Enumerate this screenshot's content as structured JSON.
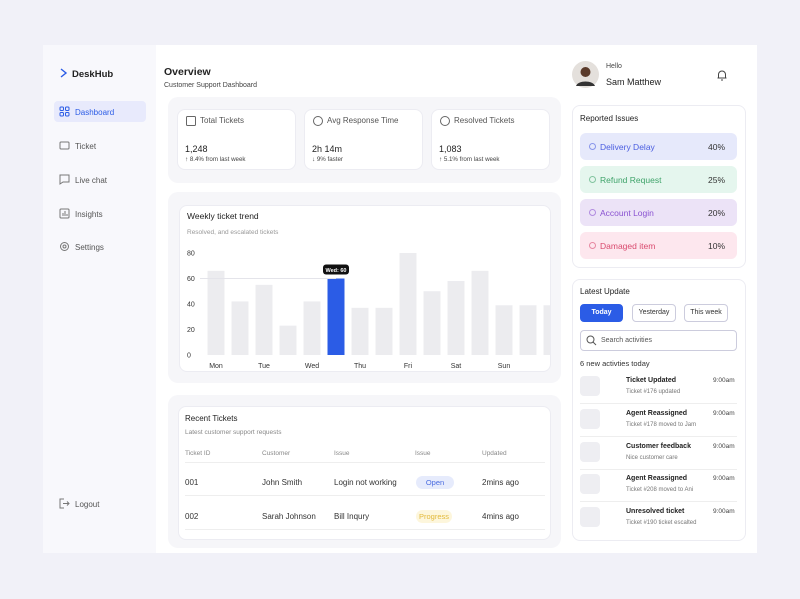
{
  "sidebar": {
    "brand": "DeskHub",
    "nav": [
      "Dashboard",
      "Ticket",
      "Live chat",
      "Insights",
      "Settings"
    ],
    "logout": "Logout"
  },
  "header": {
    "title": "Overview",
    "subtitle": "Customer Support Dashboard"
  },
  "user": {
    "greeting": "Hello",
    "name": "Sam Matthew"
  },
  "stats": [
    {
      "label": "Total Tickets",
      "value": "1,248",
      "change": "↑ 8.4% from last week"
    },
    {
      "label": "Avg Response Time",
      "value": "2h 14m",
      "change": "↓ 9% faster"
    },
    {
      "label": "Resolved Tickets",
      "value": "1,083",
      "change": "↑ 5.1% from last week"
    }
  ],
  "chart_data": {
    "type": "bar",
    "title": "Weekly ticket trend",
    "subtitle": "Resolved, and escalated tickets",
    "categories": [
      "Mon",
      null,
      "Tue",
      null,
      "Wed",
      null,
      "Thu",
      null,
      "Fri",
      null,
      "Sat",
      null,
      "Sun",
      null,
      null
    ],
    "values": [
      66,
      42,
      55,
      23,
      42,
      60,
      37,
      37,
      80,
      50,
      58,
      66,
      39,
      39,
      39
    ],
    "color": "#ececef",
    "highlight_index": 5,
    "highlight_color": "#2b5ce6",
    "tooltip": "Wed: 60",
    "ylim": [
      0,
      80
    ],
    "yticks": [
      0,
      20,
      40,
      60,
      80
    ],
    "grid": false
  },
  "recent": {
    "title": "Recent Tickets",
    "subtitle": "Latest customer support requests",
    "columns": [
      "Ticket ID",
      "Customer",
      "Issue",
      "Issue",
      "Updated"
    ],
    "rows": [
      [
        "001",
        "John Smith",
        "Login not working",
        "Open",
        "2mins ago"
      ],
      [
        "002",
        "Sarah Johnson",
        "Bill Inqury",
        "Progress",
        "4mins ago"
      ]
    ]
  },
  "issues": {
    "title": "Reported Issues",
    "items": [
      {
        "label": "Delivery Delay",
        "value": "40%"
      },
      {
        "label": "Refund Request",
        "value": "25%"
      },
      {
        "label": "Account Login",
        "value": "20%"
      },
      {
        "label": "Damaged item",
        "value": "10%"
      }
    ]
  },
  "updates": {
    "title": "Latest Update",
    "tabs": [
      "Today",
      "Yesterday",
      "This week"
    ],
    "search": "Search activities",
    "count": "6 new activties today",
    "items": [
      {
        "title": "Ticket Updated",
        "detail": "Ticket #176 updated",
        "time": "9:00am"
      },
      {
        "title": "Agent Reassigned",
        "detail": "Ticket #178 moved to Jam",
        "time": "9:00am"
      },
      {
        "title": "Customer feedback",
        "detail": "Nice customer care",
        "time": "9:00am"
      },
      {
        "title": "Agent Reassigned",
        "detail": "Ticket #208 moved to Ani",
        "time": "9:00am"
      },
      {
        "title": "Unresolved ticket",
        "detail": "Ticket #190 ticket escalted",
        "time": "9:00am"
      }
    ]
  }
}
